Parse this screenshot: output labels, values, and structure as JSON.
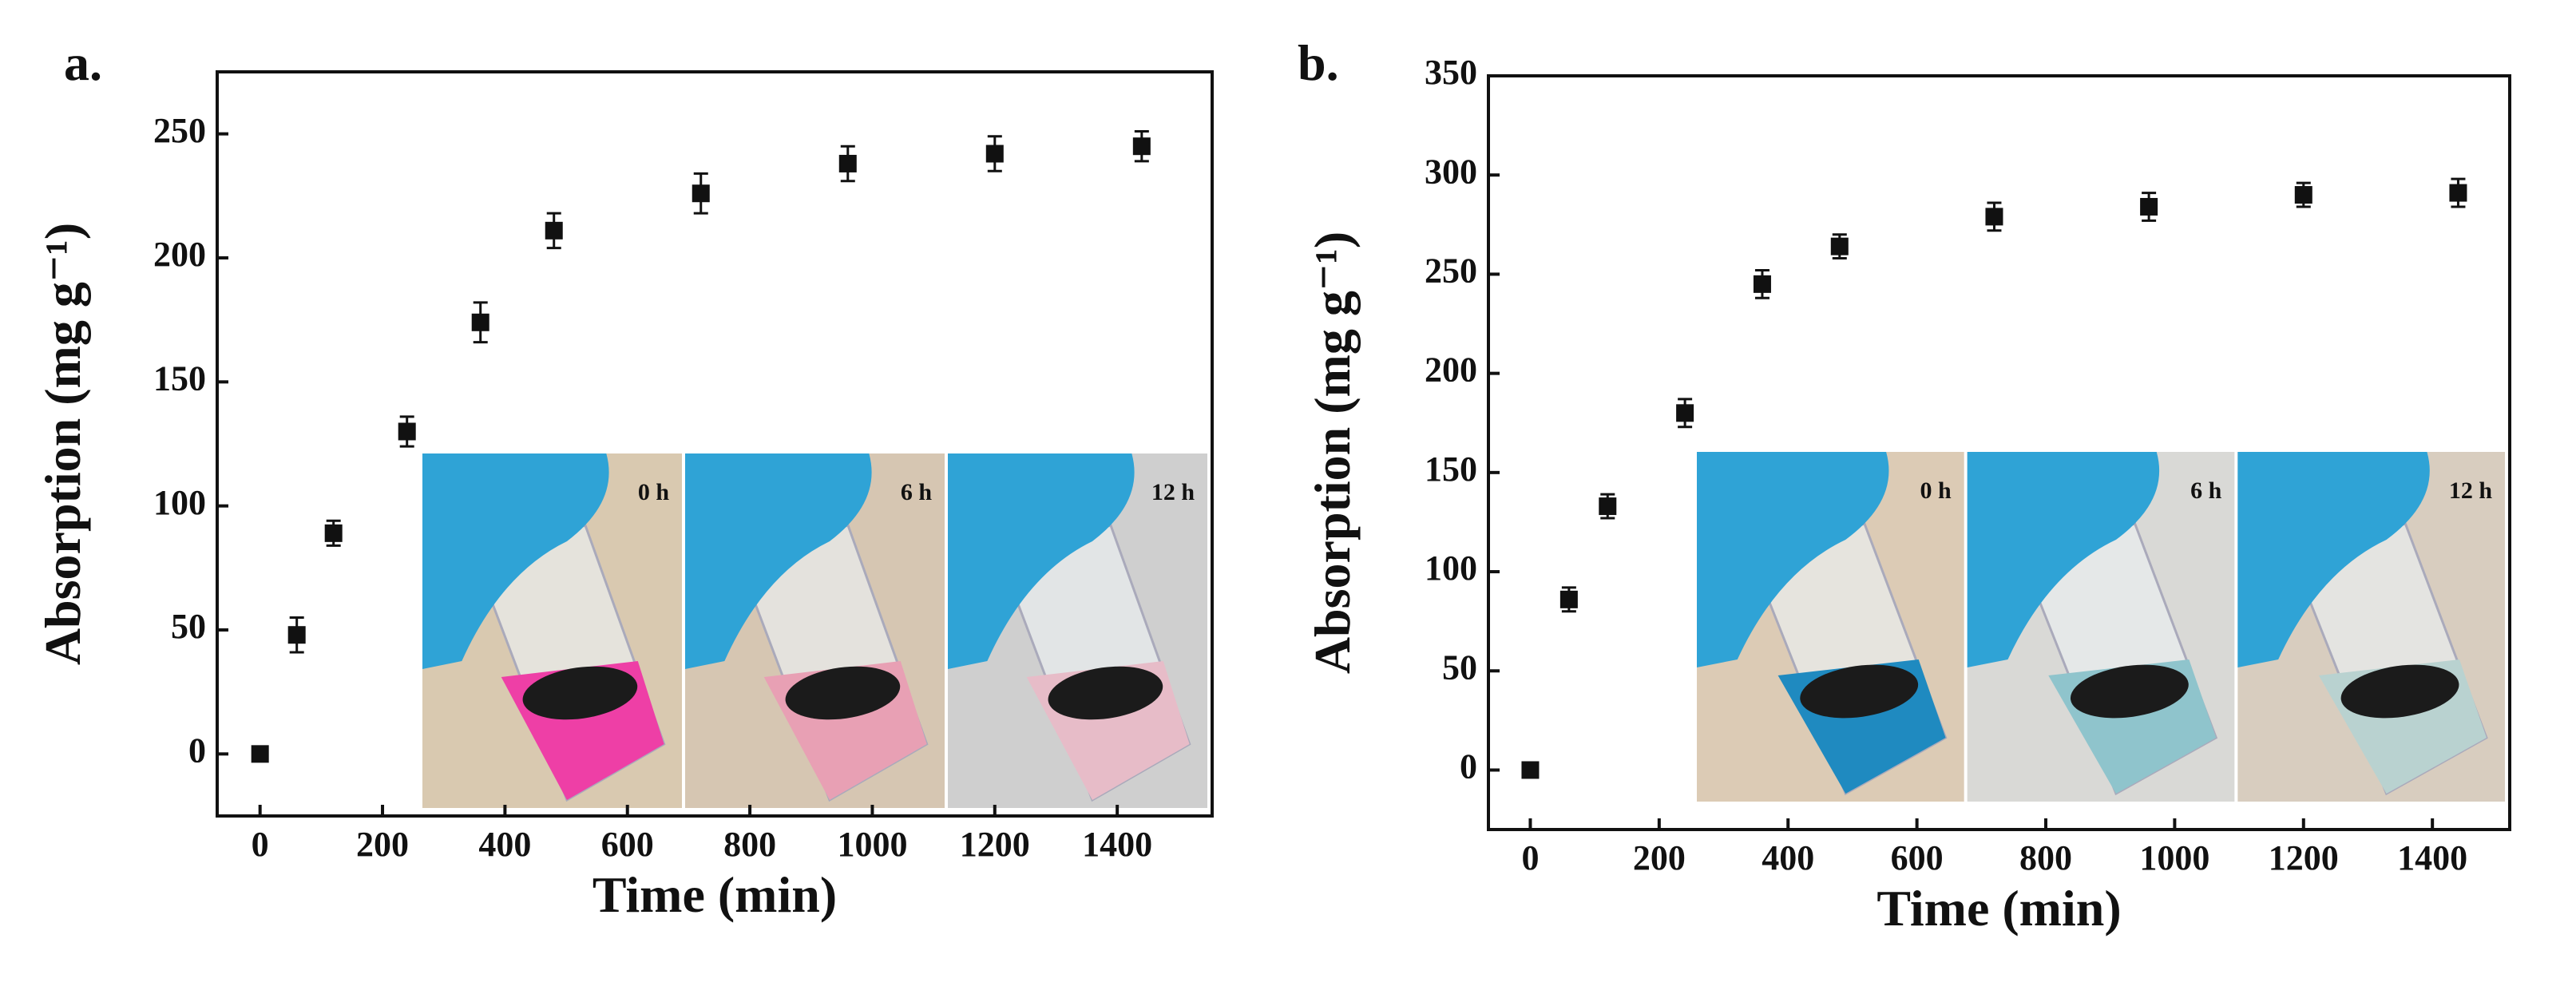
{
  "chart_data": [
    {
      "type": "scatter",
      "panel_label": "a.",
      "xlabel": "Time (min)",
      "ylabel": "Absorption (mg g⁻¹)",
      "color": "#111111",
      "x": [
        0,
        60,
        120,
        240,
        360,
        480,
        720,
        960,
        1200,
        1440
      ],
      "values": [
        0,
        48,
        89,
        130,
        174,
        211,
        226,
        238,
        242,
        245
      ],
      "errors": [
        2,
        7,
        5,
        6,
        8,
        7,
        8,
        7,
        7,
        6
      ],
      "xlim": [
        -70,
        1555
      ],
      "ylim": [
        -25,
        275
      ],
      "xticks": [
        0,
        200,
        400,
        600,
        800,
        1000,
        1200,
        1400
      ],
      "yticks": [
        0,
        50,
        100,
        150,
        200,
        250
      ],
      "inset_labels": [
        "0 h",
        "6 h",
        "12 h"
      ]
    },
    {
      "type": "scatter",
      "panel_label": "b.",
      "xlabel": "Time (min)",
      "ylabel": "Absorption (mg g⁻¹)",
      "color": "#111111",
      "x": [
        0,
        60,
        120,
        240,
        360,
        480,
        720,
        960,
        1200,
        1440
      ],
      "values": [
        0,
        86,
        133,
        180,
        245,
        264,
        279,
        284,
        290,
        291
      ],
      "errors": [
        2,
        6,
        6,
        7,
        7,
        6,
        7,
        7,
        6,
        7
      ],
      "xlim": [
        -65,
        1520
      ],
      "ylim": [
        -30,
        350
      ],
      "xticks": [
        0,
        200,
        400,
        600,
        800,
        1000,
        1200,
        1400
      ],
      "yticks": [
        0,
        50,
        100,
        150,
        200,
        250,
        300,
        350
      ],
      "inset_labels": [
        "0 h",
        "6 h",
        "12 h"
      ]
    }
  ]
}
